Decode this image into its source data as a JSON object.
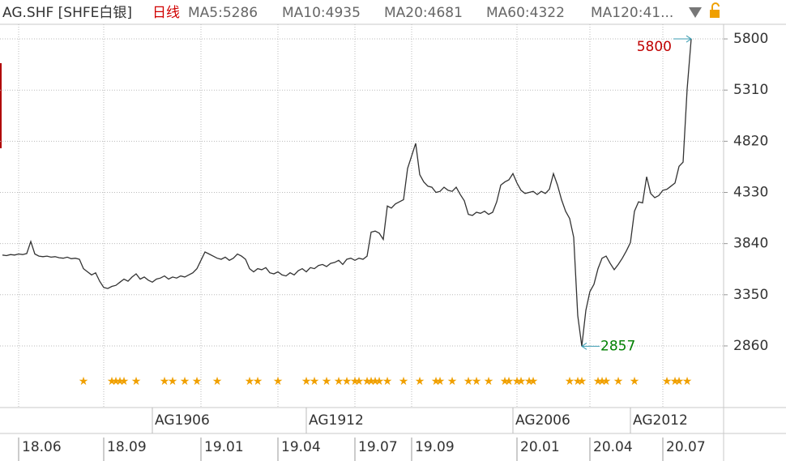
{
  "chart_data": {
    "type": "line",
    "header": [
      "AG.SHF [SHFE白银]",
      "日线",
      "MA5:5286",
      "MA10:4935",
      "MA20:4681",
      "MA60:4322",
      "MA120:41..."
    ],
    "color": "#333333",
    "values": [
      3730,
      3725,
      3735,
      3730,
      3740,
      3735,
      3745,
      3860,
      3740,
      3720,
      3715,
      3720,
      3710,
      3715,
      3705,
      3700,
      3710,
      3695,
      3700,
      3690,
      3600,
      3570,
      3540,
      3560,
      3480,
      3420,
      3410,
      3430,
      3440,
      3470,
      3500,
      3480,
      3520,
      3550,
      3500,
      3520,
      3490,
      3470,
      3500,
      3510,
      3530,
      3500,
      3520,
      3510,
      3530,
      3520,
      3540,
      3560,
      3600,
      3680,
      3760,
      3740,
      3720,
      3700,
      3690,
      3710,
      3680,
      3700,
      3740,
      3720,
      3690,
      3600,
      3570,
      3600,
      3590,
      3610,
      3560,
      3550,
      3570,
      3540,
      3530,
      3560,
      3540,
      3580,
      3600,
      3570,
      3610,
      3600,
      3630,
      3640,
      3620,
      3650,
      3660,
      3680,
      3640,
      3690,
      3700,
      3680,
      3700,
      3690,
      3720,
      3950,
      3960,
      3940,
      3880,
      4200,
      4180,
      4220,
      4240,
      4260,
      4560,
      4680,
      4800,
      4500,
      4430,
      4390,
      4380,
      4330,
      4340,
      4380,
      4350,
      4340,
      4380,
      4310,
      4250,
      4120,
      4110,
      4140,
      4130,
      4150,
      4120,
      4140,
      4240,
      4400,
      4430,
      4450,
      4510,
      4420,
      4350,
      4320,
      4330,
      4340,
      4310,
      4340,
      4320,
      4360,
      4510,
      4400,
      4260,
      4150,
      4080,
      3900,
      3150,
      2857,
      3200,
      3380,
      3450,
      3600,
      3700,
      3720,
      3650,
      3590,
      3640,
      3700,
      3770,
      3850,
      4150,
      4240,
      4230,
      4480,
      4320,
      4280,
      4300,
      4350,
      4360,
      4390,
      4420,
      4580,
      4620,
      5320,
      5800
    ],
    "max": 5800,
    "min": 2857,
    "ylim": [
      2270,
      5940
    ],
    "yticks": [
      2860,
      3350,
      3840,
      4330,
      4820,
      5310,
      5800
    ],
    "xlim": [
      -0.6,
      178
    ],
    "xticks": [
      {
        "value": 4,
        "label": "18.06"
      },
      {
        "value": 25,
        "label": "18.09"
      },
      {
        "value": 49,
        "label": "19.01"
      },
      {
        "value": 68,
        "label": "19.04"
      },
      {
        "value": 87,
        "label": "19.07"
      },
      {
        "value": 101,
        "label": "19.09"
      },
      {
        "value": 127,
        "label": "20.01"
      },
      {
        "value": 145,
        "label": "20.04"
      },
      {
        "value": 163,
        "label": "20.07"
      }
    ],
    "contract_ticks": [
      {
        "value": 37,
        "label": "AG1906"
      },
      {
        "value": 75,
        "label": "AG1912"
      },
      {
        "value": 126,
        "label": "AG2006"
      },
      {
        "value": 155,
        "label": "AG2012"
      }
    ],
    "events": [
      20,
      27,
      28,
      29,
      30,
      33,
      40,
      42,
      45,
      48,
      53,
      61,
      63,
      68,
      75,
      77,
      80,
      83,
      85,
      87,
      88,
      90,
      91,
      92,
      93,
      95,
      99,
      103,
      107,
      108,
      111,
      115,
      117,
      120,
      124,
      125,
      127,
      128,
      130,
      131,
      140,
      142,
      143,
      147,
      148,
      149,
      152,
      156,
      164,
      166,
      167,
      169
    ],
    "grid": true
  }
}
